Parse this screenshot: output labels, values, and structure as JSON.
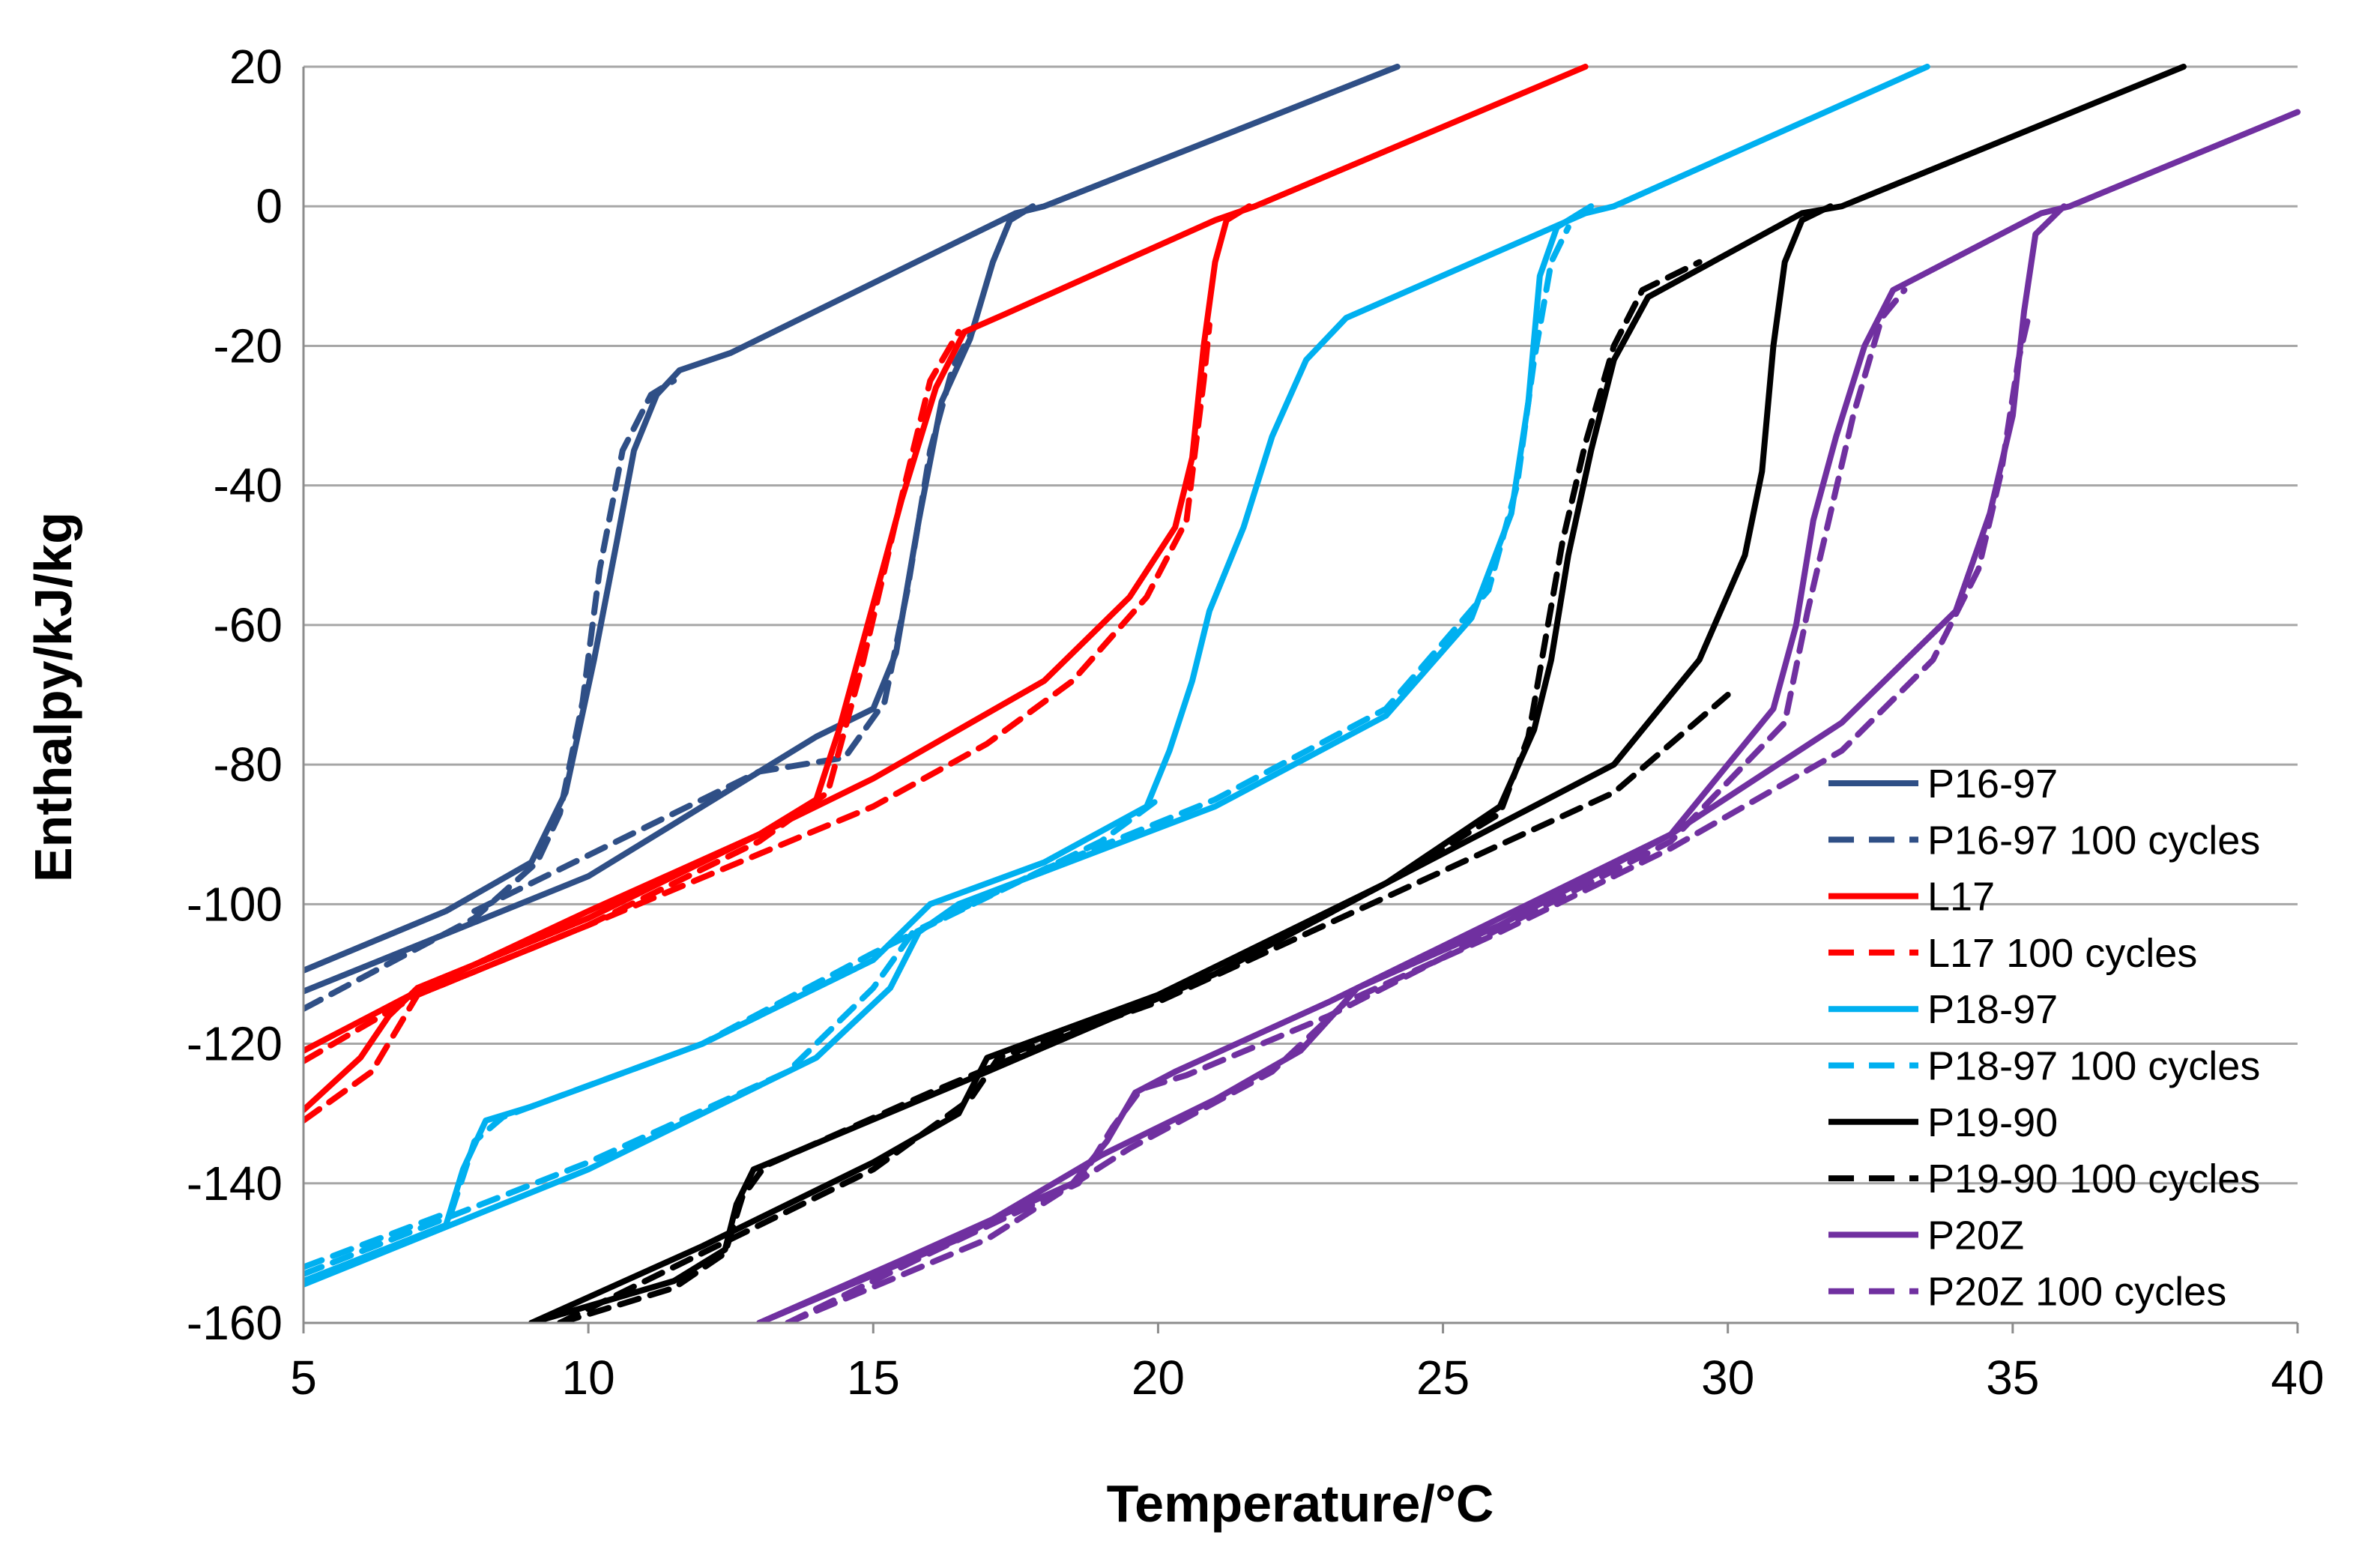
{
  "chart_data": {
    "type": "line",
    "title": "",
    "xlabel": "Temperature/°C",
    "ylabel": "Enthalpy/kJ/kg",
    "xlim": [
      5,
      40
    ],
    "ylim": [
      -160,
      20
    ],
    "xticks": [
      5,
      10,
      15,
      20,
      25,
      30,
      35,
      40
    ],
    "yticks": [
      20,
      0,
      -20,
      -40,
      -60,
      -80,
      -100,
      -120,
      -140,
      -160
    ],
    "grid": true,
    "legend_position": "bottom-right",
    "series": [
      {
        "name": "P16-97",
        "color": "#2f4f86",
        "dash": "solid",
        "segments": [
          [
            [
              5,
              -109.5
            ],
            [
              7.5,
              -101
            ],
            [
              9,
              -94
            ],
            [
              9.6,
              -84
            ],
            [
              10.1,
              -65
            ],
            [
              10.5,
              -48
            ],
            [
              10.8,
              -35
            ],
            [
              11.2,
              -27
            ],
            [
              11.6,
              -23.5
            ],
            [
              12.5,
              -21
            ],
            [
              17.5,
              -1
            ],
            [
              18,
              0
            ],
            [
              24.2,
              20
            ]
          ],
          [
            [
              5,
              -112.5
            ],
            [
              10,
              -96
            ],
            [
              14,
              -76
            ],
            [
              15,
              -72
            ],
            [
              15.4,
              -64
            ],
            [
              15.8,
              -45
            ],
            [
              16.2,
              -28
            ],
            [
              16.7,
              -19
            ],
            [
              17.1,
              -8
            ],
            [
              17.4,
              -2
            ],
            [
              17.8,
              0
            ]
          ]
        ]
      },
      {
        "name": "P16-97 100 cycles",
        "color": "#2f4f86",
        "dash": "dashed",
        "segments": [
          [
            [
              5,
              -115
            ],
            [
              8,
              -102
            ],
            [
              9.1,
              -94
            ],
            [
              9.5,
              -87
            ],
            [
              9.9,
              -71
            ],
            [
              10.2,
              -52
            ],
            [
              10.6,
              -35
            ],
            [
              11.1,
              -27
            ],
            [
              11.5,
              -25
            ]
          ],
          [
            [
              8,
              -101
            ],
            [
              13,
              -81
            ],
            [
              14.5,
              -79
            ],
            [
              15.2,
              -71
            ],
            [
              15.6,
              -55
            ],
            [
              16,
              -35
            ],
            [
              16.4,
              -23
            ],
            [
              16.8,
              -17
            ]
          ]
        ]
      },
      {
        "name": "L17",
        "color": "#ff0000",
        "dash": "solid",
        "segments": [
          [
            [
              5,
              -121
            ],
            [
              7,
              -112.5
            ],
            [
              10,
              -101
            ],
            [
              13,
              -90
            ],
            [
              14,
              -85
            ],
            [
              14.4,
              -75
            ],
            [
              14.9,
              -60
            ],
            [
              15.5,
              -42
            ],
            [
              16.1,
              -26
            ],
            [
              16.6,
              -18
            ],
            [
              17.3,
              -15.5
            ],
            [
              21,
              -2
            ],
            [
              21.7,
              0
            ],
            [
              27.5,
              20
            ]
          ],
          [
            [
              5,
              -129.5
            ],
            [
              6,
              -122
            ],
            [
              6.5,
              -116
            ],
            [
              7,
              -112
            ],
            [
              10,
              -102
            ],
            [
              15,
              -82
            ],
            [
              18,
              -68
            ],
            [
              19.5,
              -56
            ],
            [
              20.3,
              -46
            ],
            [
              20.6,
              -36
            ],
            [
              20.8,
              -20
            ],
            [
              21,
              -8
            ],
            [
              21.2,
              -2
            ],
            [
              21.6,
              0
            ]
          ]
        ]
      },
      {
        "name": "L17 100 cycles",
        "color": "#ff0000",
        "dash": "dashed",
        "segments": [
          [
            [
              5,
              -122.5
            ],
            [
              7,
              -113
            ],
            [
              10,
              -103
            ],
            [
              13,
              -91
            ],
            [
              14.2,
              -84
            ],
            [
              14.8,
              -66
            ],
            [
              15.4,
              -45
            ],
            [
              16,
              -25
            ],
            [
              16.5,
              -18
            ]
          ],
          [
            [
              5,
              -131
            ],
            [
              6.2,
              -124
            ],
            [
              7,
              -113
            ],
            [
              10,
              -103
            ],
            [
              15,
              -86
            ],
            [
              17,
              -77
            ],
            [
              18.5,
              -68
            ],
            [
              19.8,
              -56
            ],
            [
              20.5,
              -45
            ],
            [
              20.8,
              -25
            ],
            [
              20.9,
              -17
            ]
          ]
        ]
      },
      {
        "name": "P18-97",
        "color": "#00b0f0",
        "dash": "solid",
        "segments": [
          [
            [
              5,
              -154
            ],
            [
              7.5,
              -146
            ],
            [
              7.8,
              -138
            ],
            [
              8.2,
              -131
            ],
            [
              9,
              -129
            ],
            [
              12,
              -120
            ],
            [
              15,
              -108
            ],
            [
              16,
              -100
            ],
            [
              18,
              -94
            ],
            [
              19.8,
              -86
            ],
            [
              20.2,
              -78
            ],
            [
              20.6,
              -68
            ],
            [
              20.9,
              -58
            ],
            [
              21.5,
              -46
            ],
            [
              22,
              -33
            ],
            [
              22.6,
              -22
            ],
            [
              23.3,
              -16
            ],
            [
              27.5,
              -1
            ],
            [
              28,
              0
            ],
            [
              33.5,
              20
            ]
          ],
          [
            [
              5,
              -154.5
            ],
            [
              10,
              -138
            ],
            [
              14,
              -122
            ],
            [
              15.3,
              -112
            ],
            [
              15.8,
              -104
            ],
            [
              16.5,
              -100
            ],
            [
              21,
              -86
            ],
            [
              24,
              -73
            ],
            [
              25.5,
              -59
            ],
            [
              26.2,
              -44
            ],
            [
              26.5,
              -28
            ],
            [
              26.7,
              -10
            ],
            [
              27,
              -3
            ],
            [
              27.6,
              0
            ]
          ]
        ]
      },
      {
        "name": "P18-97 100 cycles",
        "color": "#00b0f0",
        "dash": "dashed",
        "segments": [
          [
            [
              5,
              -152
            ],
            [
              7.6,
              -144
            ],
            [
              8,
              -134
            ],
            [
              8.5,
              -130.5
            ],
            [
              12,
              -120
            ],
            [
              15,
              -107
            ],
            [
              19,
              -91
            ],
            [
              20,
              -85
            ]
          ],
          [
            [
              5,
              -153
            ],
            [
              10,
              -137
            ],
            [
              13.5,
              -124
            ],
            [
              15,
              -112
            ],
            [
              15.7,
              -104
            ],
            [
              18,
              -95
            ],
            [
              21,
              -85
            ],
            [
              24,
              -72
            ],
            [
              25.8,
              -55
            ],
            [
              26.3,
              -40
            ],
            [
              26.6,
              -22
            ],
            [
              26.9,
              -8
            ],
            [
              27.2,
              -3
            ]
          ]
        ]
      },
      {
        "name": "P19-90",
        "color": "#000000",
        "dash": "solid",
        "segments": [
          [
            [
              9,
              -160
            ],
            [
              11.5,
              -154
            ],
            [
              12.4,
              -149.5
            ],
            [
              12.6,
              -143
            ],
            [
              12.9,
              -138
            ],
            [
              13.5,
              -136
            ],
            [
              17,
              -124
            ],
            [
              21,
              -110
            ],
            [
              24,
              -97
            ],
            [
              26,
              -86
            ],
            [
              26.6,
              -75
            ],
            [
              26.9,
              -65
            ],
            [
              27.2,
              -50
            ],
            [
              27.6,
              -35
            ],
            [
              28,
              -22
            ],
            [
              28.6,
              -13
            ],
            [
              31.3,
              -1
            ],
            [
              32,
              0
            ],
            [
              38,
              20
            ]
          ],
          [
            [
              9,
              -160
            ],
            [
              12,
              -149
            ],
            [
              15,
              -137
            ],
            [
              16.5,
              -130
            ],
            [
              17,
              -122
            ],
            [
              20,
              -113
            ],
            [
              24,
              -97
            ],
            [
              28,
              -80
            ],
            [
              29.5,
              -65
            ],
            [
              30.3,
              -50
            ],
            [
              30.6,
              -38
            ],
            [
              30.8,
              -20
            ],
            [
              31,
              -8
            ],
            [
              31.3,
              -2
            ],
            [
              31.8,
              0
            ]
          ]
        ]
      },
      {
        "name": "P19-90 100 cycles",
        "color": "#000000",
        "dash": "dashed",
        "segments": [
          [
            [
              9.5,
              -160
            ],
            [
              11.5,
              -155
            ],
            [
              12.4,
              -150
            ],
            [
              12.7,
              -142
            ],
            [
              13.1,
              -137.5
            ],
            [
              16,
              -127
            ],
            [
              21,
              -110
            ],
            [
              24,
              -97
            ],
            [
              26,
              -87
            ],
            [
              26.5,
              -76
            ],
            [
              26.8,
              -62
            ],
            [
              27.1,
              -48
            ],
            [
              27.5,
              -34
            ],
            [
              28,
              -20
            ],
            [
              28.5,
              -12
            ],
            [
              29.5,
              -8
            ]
          ],
          [
            [
              9.5,
              -160
            ],
            [
              12,
              -150
            ],
            [
              15,
              -138
            ],
            [
              16.7,
              -128
            ],
            [
              17.2,
              -122
            ],
            [
              20,
              -114
            ],
            [
              24,
              -99
            ],
            [
              28,
              -84
            ],
            [
              30,
              -70
            ]
          ]
        ]
      },
      {
        "name": "P20Z",
        "color": "#7030a0",
        "dash": "solid",
        "segments": [
          [
            [
              13,
              -160
            ],
            [
              15.5,
              -151
            ],
            [
              18.5,
              -140
            ],
            [
              19.1,
              -134
            ],
            [
              19.6,
              -127
            ],
            [
              20.3,
              -124
            ],
            [
              23,
              -114
            ],
            [
              29,
              -90
            ],
            [
              30.8,
              -72
            ],
            [
              31.2,
              -60
            ],
            [
              31.5,
              -45
            ],
            [
              31.9,
              -33
            ],
            [
              32.4,
              -20
            ],
            [
              32.9,
              -12
            ],
            [
              35.5,
              -1
            ],
            [
              36,
              0
            ],
            [
              40,
              13.5
            ]
          ],
          [
            [
              13,
              -160
            ],
            [
              16.5,
              -148
            ],
            [
              19,
              -136
            ],
            [
              21,
              -128
            ],
            [
              22.5,
              -121
            ],
            [
              23.5,
              -112
            ],
            [
              26,
              -103
            ],
            [
              29,
              -90
            ],
            [
              32,
              -74
            ],
            [
              34,
              -58
            ],
            [
              34.6,
              -44
            ],
            [
              35,
              -30
            ],
            [
              35.2,
              -15
            ],
            [
              35.4,
              -4
            ],
            [
              35.9,
              0
            ]
          ]
        ]
      },
      {
        "name": "P20Z 100 cycles",
        "color": "#7030a0",
        "dash": "dashed",
        "segments": [
          [
            [
              13.5,
              -160
            ],
            [
              16,
              -150
            ],
            [
              18.6,
              -140
            ],
            [
              19.2,
              -132
            ],
            [
              19.7,
              -126.5
            ],
            [
              20.5,
              -124.5
            ],
            [
              23,
              -116
            ],
            [
              29,
              -91
            ],
            [
              31,
              -74
            ],
            [
              31.4,
              -58
            ],
            [
              31.8,
              -44
            ],
            [
              32.2,
              -30
            ],
            [
              32.7,
              -16
            ],
            [
              33.1,
              -12
            ]
          ],
          [
            [
              13.5,
              -160
            ],
            [
              17,
              -148
            ],
            [
              19.5,
              -135
            ],
            [
              22,
              -124
            ],
            [
              23.3,
              -114
            ],
            [
              26,
              -104
            ],
            [
              29,
              -92
            ],
            [
              32,
              -78
            ],
            [
              33.6,
              -65
            ],
            [
              34.4,
              -52
            ],
            [
              34.8,
              -38
            ],
            [
              35.1,
              -22
            ],
            [
              35.3,
              -15
            ]
          ]
        ]
      }
    ]
  }
}
